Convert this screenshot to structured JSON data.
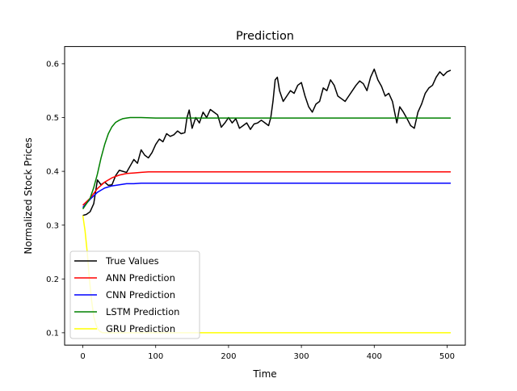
{
  "chart_data": {
    "type": "line",
    "title": "Prediction",
    "xlabel": "Time",
    "ylabel": "Normalized Stock Prices",
    "xlim": [
      -25,
      525
    ],
    "ylim": [
      0.077,
      0.632
    ],
    "xticks": [
      0,
      100,
      200,
      300,
      400,
      500
    ],
    "yticks": [
      0.1,
      0.2,
      0.3,
      0.4,
      0.5,
      0.6
    ],
    "xtick_labels": [
      "0",
      "100",
      "200",
      "300",
      "400",
      "500"
    ],
    "ytick_labels": [
      "0.1",
      "0.2",
      "0.3",
      "0.4",
      "0.5",
      "0.6"
    ],
    "grid": false,
    "legend_position": "lower-left",
    "series": [
      {
        "name": "True Values",
        "color": "#000000",
        "x": [
          0,
          5,
          10,
          15,
          20,
          25,
          30,
          35,
          40,
          45,
          50,
          55,
          60,
          65,
          70,
          75,
          80,
          85,
          90,
          95,
          100,
          105,
          110,
          115,
          120,
          125,
          130,
          135,
          140,
          143,
          146,
          150,
          155,
          160,
          165,
          170,
          175,
          180,
          185,
          190,
          195,
          200,
          205,
          210,
          215,
          220,
          225,
          230,
          235,
          240,
          245,
          250,
          255,
          258,
          261,
          264,
          267,
          270,
          275,
          280,
          285,
          290,
          295,
          300,
          305,
          310,
          315,
          320,
          325,
          330,
          335,
          340,
          345,
          350,
          355,
          360,
          365,
          370,
          375,
          380,
          385,
          390,
          395,
          400,
          405,
          410,
          415,
          420,
          425,
          428,
          431,
          435,
          440,
          445,
          450,
          455,
          460,
          465,
          470,
          475,
          480,
          485,
          490,
          495,
          500,
          505
        ],
        "y": [
          0.318,
          0.32,
          0.325,
          0.34,
          0.384,
          0.375,
          0.38,
          0.374,
          0.375,
          0.392,
          0.402,
          0.4,
          0.398,
          0.41,
          0.422,
          0.415,
          0.44,
          0.43,
          0.425,
          0.435,
          0.45,
          0.46,
          0.455,
          0.47,
          0.465,
          0.468,
          0.475,
          0.47,
          0.472,
          0.5,
          0.514,
          0.48,
          0.5,
          0.49,
          0.51,
          0.5,
          0.515,
          0.51,
          0.505,
          0.482,
          0.49,
          0.5,
          0.49,
          0.498,
          0.48,
          0.485,
          0.49,
          0.478,
          0.488,
          0.49,
          0.495,
          0.49,
          0.485,
          0.5,
          0.53,
          0.57,
          0.575,
          0.55,
          0.53,
          0.54,
          0.55,
          0.545,
          0.56,
          0.565,
          0.54,
          0.52,
          0.51,
          0.525,
          0.53,
          0.555,
          0.55,
          0.57,
          0.56,
          0.54,
          0.535,
          0.53,
          0.54,
          0.55,
          0.56,
          0.568,
          0.563,
          0.55,
          0.575,
          0.59,
          0.57,
          0.558,
          0.54,
          0.545,
          0.53,
          0.51,
          0.49,
          0.52,
          0.51,
          0.498,
          0.485,
          0.48,
          0.51,
          0.525,
          0.545,
          0.555,
          0.56,
          0.575,
          0.585,
          0.578,
          0.585,
          0.588
        ]
      },
      {
        "name": "ANN Prediction",
        "color": "#ff0000",
        "x": [
          0,
          10,
          20,
          30,
          40,
          50,
          60,
          70,
          80,
          90,
          100,
          120,
          140,
          160,
          200,
          300,
          400,
          505
        ],
        "y": [
          0.337,
          0.35,
          0.368,
          0.38,
          0.388,
          0.393,
          0.396,
          0.397,
          0.398,
          0.399,
          0.399,
          0.399,
          0.399,
          0.399,
          0.399,
          0.399,
          0.399,
          0.399
        ]
      },
      {
        "name": "CNN Prediction",
        "color": "#0000ff",
        "x": [
          0,
          10,
          20,
          30,
          40,
          50,
          60,
          70,
          80,
          100,
          120,
          150,
          200,
          300,
          400,
          505
        ],
        "y": [
          0.333,
          0.348,
          0.361,
          0.369,
          0.373,
          0.375,
          0.377,
          0.377,
          0.378,
          0.378,
          0.378,
          0.378,
          0.378,
          0.378,
          0.378,
          0.378
        ]
      },
      {
        "name": "LSTM Prediction",
        "color": "#008000",
        "x": [
          0,
          5,
          10,
          15,
          20,
          25,
          30,
          35,
          40,
          45,
          50,
          55,
          60,
          65,
          70,
          80,
          100,
          150,
          200,
          300,
          400,
          505
        ],
        "y": [
          0.33,
          0.34,
          0.35,
          0.37,
          0.395,
          0.425,
          0.45,
          0.47,
          0.483,
          0.491,
          0.495,
          0.498,
          0.499,
          0.5,
          0.5,
          0.5,
          0.499,
          0.499,
          0.499,
          0.499,
          0.499,
          0.499
        ]
      },
      {
        "name": "GRU Prediction",
        "color": "#ffff00",
        "x": [
          0,
          3,
          6,
          9,
          12,
          15,
          18,
          21,
          24,
          27,
          30,
          40,
          60,
          100,
          200,
          300,
          400,
          505
        ],
        "y": [
          0.318,
          0.29,
          0.25,
          0.2,
          0.16,
          0.13,
          0.115,
          0.106,
          0.102,
          0.1,
          0.1,
          0.1,
          0.1,
          0.1,
          0.1,
          0.1,
          0.1,
          0.1
        ]
      }
    ]
  }
}
